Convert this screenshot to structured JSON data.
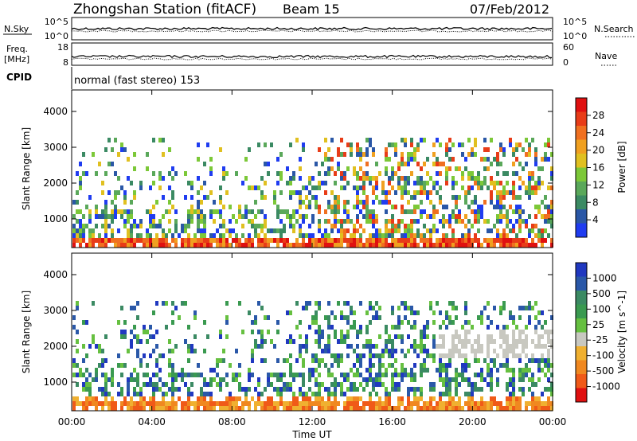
{
  "header": {
    "station": "Zhongshan Station (fitACF)",
    "beam": "Beam 15",
    "date": "07/Feb/2012"
  },
  "nsky_panel": {
    "left_label": "N.Sky",
    "left_ticks": [
      "10^5",
      "10^0"
    ],
    "right_ticks": [
      "10^5",
      "10^0"
    ],
    "right_label": "N.Search"
  },
  "freq_panel": {
    "left_label_line1": "Freq.",
    "left_label_line2": "[MHz]",
    "left_ticks": [
      "18",
      "8"
    ],
    "right_ticks": [
      "60",
      "0"
    ],
    "right_label": "Nave"
  },
  "cpid": {
    "label": "CPID",
    "text": "normal (fast stereo) 153"
  },
  "chart_data": [
    {
      "type": "heatmap",
      "ylabel": "Slant Range [km]",
      "xlabel": "Time UT",
      "x_ticks": [
        "00:00",
        "04:00",
        "08:00",
        "12:00",
        "16:00",
        "20:00",
        "00:00"
      ],
      "y_ticks": [
        1000,
        2000,
        3000,
        4000
      ],
      "ylim": [
        200,
        4600
      ],
      "colorbar": {
        "label": "Power [dB]",
        "ticks": [
          "4",
          "8",
          "12",
          "16",
          "20",
          "24",
          "28"
        ],
        "colors": [
          "#1f3cf0",
          "#2a57a6",
          "#3b8a63",
          "#5aa85a",
          "#7cc838",
          "#e0c020",
          "#f0a020",
          "#f07020",
          "#e83c18",
          "#e01010"
        ]
      }
    },
    {
      "type": "heatmap",
      "ylabel": "Slant Range [km]",
      "xlabel": "Time UT",
      "x_ticks": [
        "00:00",
        "04:00",
        "08:00",
        "12:00",
        "16:00",
        "20:00",
        "00:00"
      ],
      "y_ticks": [
        1000,
        2000,
        3000,
        4000
      ],
      "ylim": [
        200,
        4600
      ],
      "colorbar": {
        "label": "Velocity [m s^-1]",
        "ticks": [
          "1000",
          "500",
          "100",
          "25",
          "-25",
          "-100",
          "-500",
          "-1000"
        ],
        "colors": [
          "#2038c0",
          "#2a58a8",
          "#3b8a63",
          "#3a9a50",
          "#66c040",
          "#c8c8c0",
          "#f0b030",
          "#f08820",
          "#f05a18",
          "#e01010"
        ]
      }
    }
  ]
}
